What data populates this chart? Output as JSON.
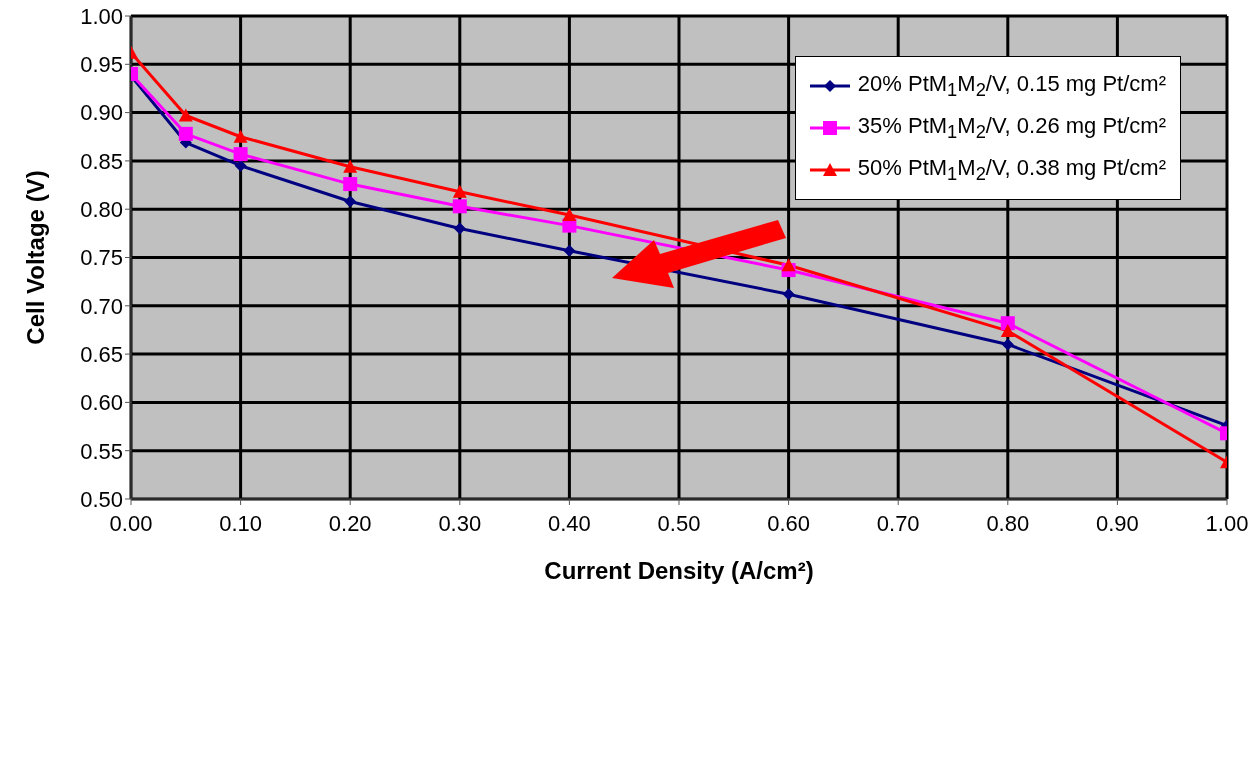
{
  "chart_data": {
    "type": "line",
    "xlabel": "Current Density (A/cm²)",
    "ylabel": "Cell Voltage (V)",
    "x": [
      0,
      0.05,
      0.1,
      0.2,
      0.3,
      0.4,
      0.6,
      0.8,
      1.0
    ],
    "series": [
      {
        "name": "20% PtM$_{1}$M$_{2}$/V, 0.15 mg Pt/cm²",
        "color": "#000080",
        "marker": "diamond",
        "values": [
          0.938,
          0.869,
          0.845,
          0.808,
          0.78,
          0.757,
          0.712,
          0.66,
          0.576
        ]
      },
      {
        "name": "35% PtM$_{1}$M$_{2}$/V, 0.26 mg Pt/cm²",
        "color": "#ff00ff",
        "marker": "square",
        "values": [
          0.94,
          0.878,
          0.857,
          0.826,
          0.803,
          0.783,
          0.737,
          0.682,
          0.568
        ]
      },
      {
        "name": "50% PtM$_{1}$M$_{2}$/V, 0.38 mg Pt/cm²",
        "color": "#ff0000",
        "marker": "triangle",
        "values": [
          0.962,
          0.897,
          0.875,
          0.844,
          0.818,
          0.794,
          0.742,
          0.674,
          0.538
        ]
      }
    ],
    "xlim": [
      0,
      1.0
    ],
    "xticks": [
      {
        "value": 0,
        "label": "0.00"
      },
      {
        "value": 0.1,
        "label": "0.10"
      },
      {
        "value": 0.2,
        "label": "0.20"
      },
      {
        "value": 0.3,
        "label": "0.30"
      },
      {
        "value": 0.4,
        "label": "0.40"
      },
      {
        "value": 0.5,
        "label": "0.50"
      },
      {
        "value": 0.6,
        "label": "0.60"
      },
      {
        "value": 0.7,
        "label": "0.70"
      },
      {
        "value": 0.8,
        "label": "0.80"
      },
      {
        "value": 0.9,
        "label": "0.90"
      },
      {
        "value": 1.0,
        "label": "1.00"
      }
    ],
    "ylim": [
      0.5,
      1.0
    ],
    "yticks": [
      {
        "value": 0.5,
        "label": "0.50"
      },
      {
        "value": 0.55,
        "label": "0.55"
      },
      {
        "value": 0.6,
        "label": "0.60"
      },
      {
        "value": 0.65,
        "label": "0.65"
      },
      {
        "value": 0.7,
        "label": "0.70"
      },
      {
        "value": 0.75,
        "label": "0.75"
      },
      {
        "value": 0.8,
        "label": "0.80"
      },
      {
        "value": 0.85,
        "label": "0.85"
      },
      {
        "value": 0.9,
        "label": "0.90"
      },
      {
        "value": 0.95,
        "label": "0.95"
      },
      {
        "value": 1.0,
        "label": "1.00"
      }
    ],
    "grid": true,
    "legend": "top right",
    "line_style": "solid"
  }
}
